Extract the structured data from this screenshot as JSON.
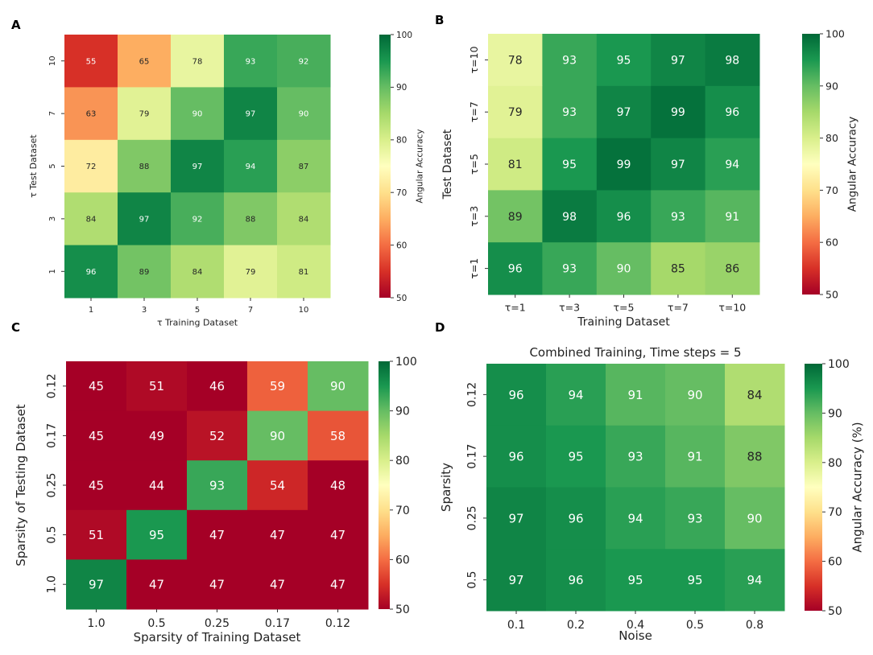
{
  "figure": {
    "colorscale": [
      "#a50026",
      "#d73027",
      "#f46d43",
      "#fdae61",
      "#fee08b",
      "#ffffbf",
      "#d9ef8b",
      "#a6d96a",
      "#66bd63",
      "#1a9850",
      "#006837"
    ]
  },
  "chart_data": [
    {
      "panel": "A",
      "type": "heatmap",
      "title": "",
      "xlabel": "τ Training Dataset",
      "ylabel": "τ Test Dataset",
      "x_categories": [
        "1",
        "3",
        "5",
        "7",
        "10"
      ],
      "y_categories": [
        "10",
        "7",
        "5",
        "3",
        "1"
      ],
      "values": [
        [
          55,
          65,
          78,
          93,
          92
        ],
        [
          63,
          79,
          90,
          97,
          90
        ],
        [
          72,
          88,
          97,
          94,
          87
        ],
        [
          84,
          97,
          92,
          88,
          84
        ],
        [
          96,
          89,
          84,
          79,
          81
        ]
      ],
      "colorbar": {
        "label": "Angular Accuracy",
        "range": [
          50,
          100
        ],
        "ticks": [
          "50",
          "60",
          "70",
          "80",
          "90",
          "100"
        ]
      }
    },
    {
      "panel": "B",
      "type": "heatmap",
      "title": "",
      "xlabel": "Training Dataset",
      "ylabel": "Test Dataset",
      "x_categories": [
        "τ=1",
        "τ=3",
        "τ=5",
        "τ=7",
        "τ=10"
      ],
      "y_categories": [
        "τ=10",
        "τ=7",
        "τ=5",
        "τ=3",
        "τ=1"
      ],
      "values": [
        [
          78,
          93,
          95,
          97,
          98
        ],
        [
          79,
          93,
          97,
          99,
          96
        ],
        [
          81,
          95,
          99,
          97,
          94
        ],
        [
          89,
          98,
          96,
          93,
          91
        ],
        [
          96,
          93,
          90,
          85,
          86
        ]
      ],
      "colorbar": {
        "label": "Angular Accuracy",
        "range": [
          50,
          100
        ],
        "ticks": [
          "50",
          "60",
          "70",
          "80",
          "90",
          "100"
        ]
      }
    },
    {
      "panel": "C",
      "type": "heatmap",
      "title": "",
      "xlabel": "Sparsity of Training Dataset",
      "ylabel": "Sparsity of Testing Dataset",
      "x_categories": [
        "1.0",
        "0.5",
        "0.25",
        "0.17",
        "0.12"
      ],
      "y_categories": [
        "0.12",
        "0.17",
        "0.25",
        "0.5",
        "1.0"
      ],
      "values": [
        [
          45,
          51,
          46,
          59,
          90
        ],
        [
          45,
          49,
          52,
          90,
          58
        ],
        [
          45,
          44,
          93,
          54,
          48
        ],
        [
          51,
          95,
          47,
          47,
          47
        ],
        [
          97,
          47,
          47,
          47,
          47
        ]
      ],
      "colorbar": {
        "label": "",
        "range": [
          50,
          100
        ],
        "ticks": [
          "50",
          "60",
          "70",
          "80",
          "90",
          "100"
        ]
      }
    },
    {
      "panel": "D",
      "type": "heatmap",
      "title": "Combined Training, Time steps = 5",
      "xlabel": "Noise",
      "ylabel": "Sparsity",
      "x_categories": [
        "0.1",
        "0.2",
        "0.4",
        "0.5",
        "0.8"
      ],
      "y_categories": [
        "0.12",
        "0.17",
        "0.25",
        "0.5"
      ],
      "values": [
        [
          96,
          94,
          91,
          90,
          84
        ],
        [
          96,
          95,
          93,
          91,
          88
        ],
        [
          97,
          96,
          94,
          93,
          90
        ],
        [
          97,
          96,
          95,
          95,
          94
        ]
      ],
      "colorbar": {
        "label": "Angular Accuracy (%)",
        "range": [
          50,
          100
        ],
        "ticks": [
          "50",
          "60",
          "70",
          "80",
          "90",
          "100"
        ]
      }
    }
  ]
}
